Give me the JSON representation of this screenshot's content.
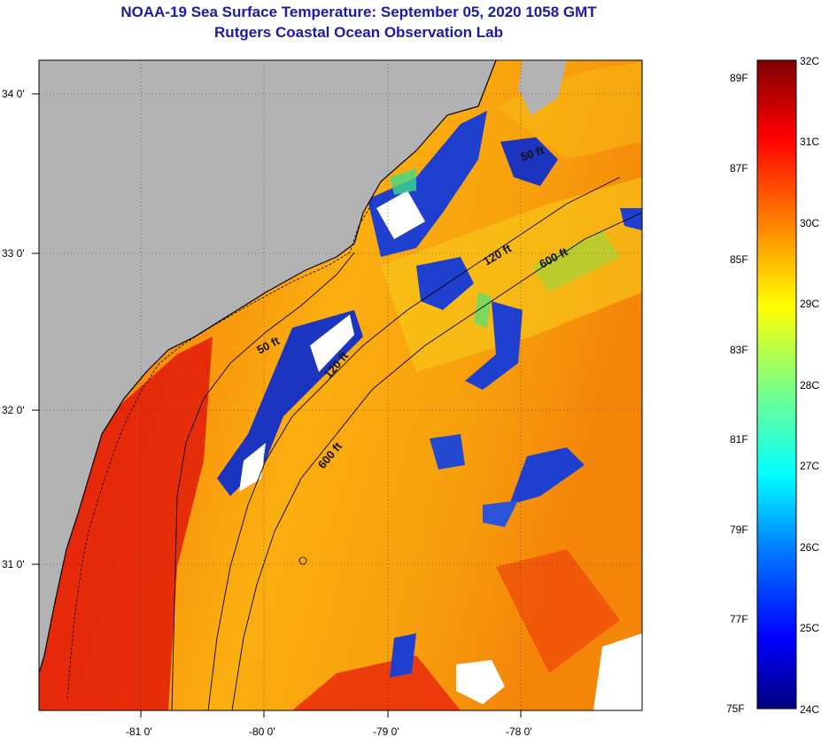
{
  "title": "NOAA-19 Sea Surface Temperature:  September 05, 2020 1058 GMT",
  "subtitle": "Rutgers Coastal Ocean Observation Lab",
  "colors": {
    "land": "#b3b3b3",
    "coastline": "#000000",
    "contour": "#000000",
    "title": "#1a1aa8"
  },
  "axes": {
    "lon_ticks": [
      "-81 0'",
      "-80 0'",
      "-79 0'",
      "-78 0'"
    ],
    "lat_ticks": [
      "34 0'",
      "33 0'",
      "32 0'",
      "31 0'"
    ]
  },
  "contours": [
    {
      "label": "50 ft"
    },
    {
      "label": "50 ft"
    },
    {
      "label": "120 ft"
    },
    {
      "label": "120 ft"
    },
    {
      "label": "600 ft"
    },
    {
      "label": "600 ft"
    }
  ],
  "colorbar": {
    "celsius": [
      "32C",
      "31C",
      "30C",
      "29C",
      "28C",
      "27C",
      "26C",
      "25C",
      "24C"
    ],
    "fahrenheit": [
      "89F",
      "87F",
      "85F",
      "83F",
      "81F",
      "79F",
      "77F",
      "75F"
    ],
    "range_c": [
      24,
      32
    ]
  }
}
